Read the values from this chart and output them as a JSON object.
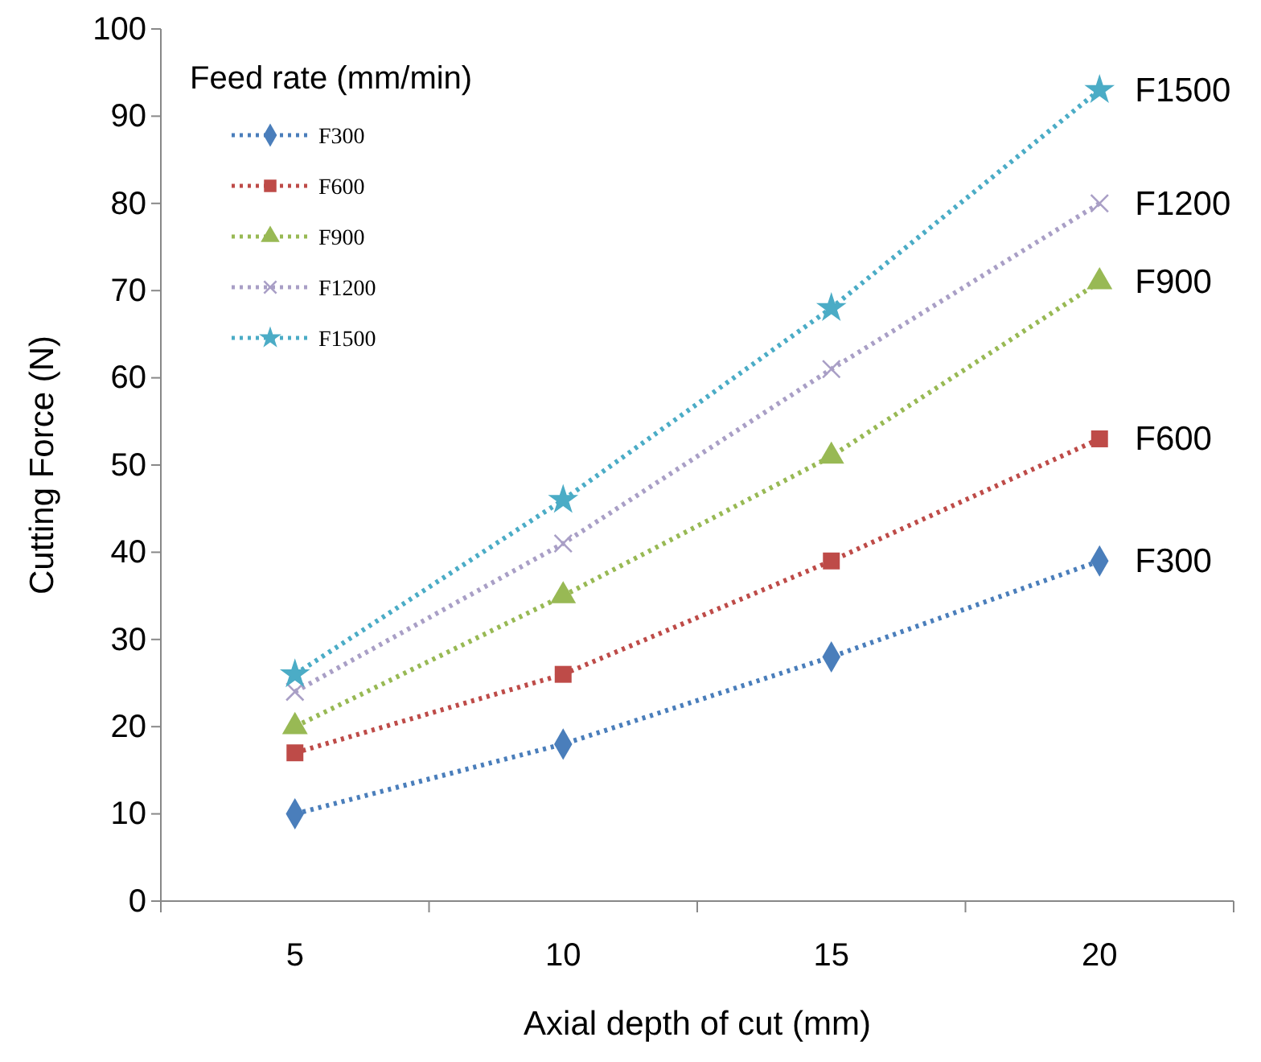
{
  "chart_data": {
    "type": "line",
    "xlabel": "Axial depth of cut (mm)",
    "ylabel": "Cutting Force (N)",
    "legend_title": "Feed rate (mm/min)",
    "categories": [
      "5",
      "10",
      "15",
      "20"
    ],
    "ylim": [
      0,
      100
    ],
    "yticks": [
      0,
      10,
      20,
      30,
      40,
      50,
      60,
      70,
      80,
      90,
      100
    ],
    "grid": false,
    "legend": "top left",
    "line_style": "dotted",
    "series": [
      {
        "name": "F300",
        "color": "#4a7ebb",
        "marker": "diamond",
        "values": [
          10,
          18,
          28,
          39
        ]
      },
      {
        "name": "F600",
        "color": "#be4b48",
        "marker": "square",
        "values": [
          17,
          26,
          39,
          53
        ]
      },
      {
        "name": "F900",
        "color": "#98b954",
        "marker": "triangle",
        "values": [
          20,
          35,
          51,
          71
        ]
      },
      {
        "name": "F1200",
        "color": "#a99fc6",
        "marker": "cross",
        "values": [
          24,
          41,
          61,
          80
        ]
      },
      {
        "name": "F1500",
        "color": "#4bacc6",
        "marker": "star",
        "values": [
          26,
          46,
          68,
          93
        ]
      }
    ]
  }
}
